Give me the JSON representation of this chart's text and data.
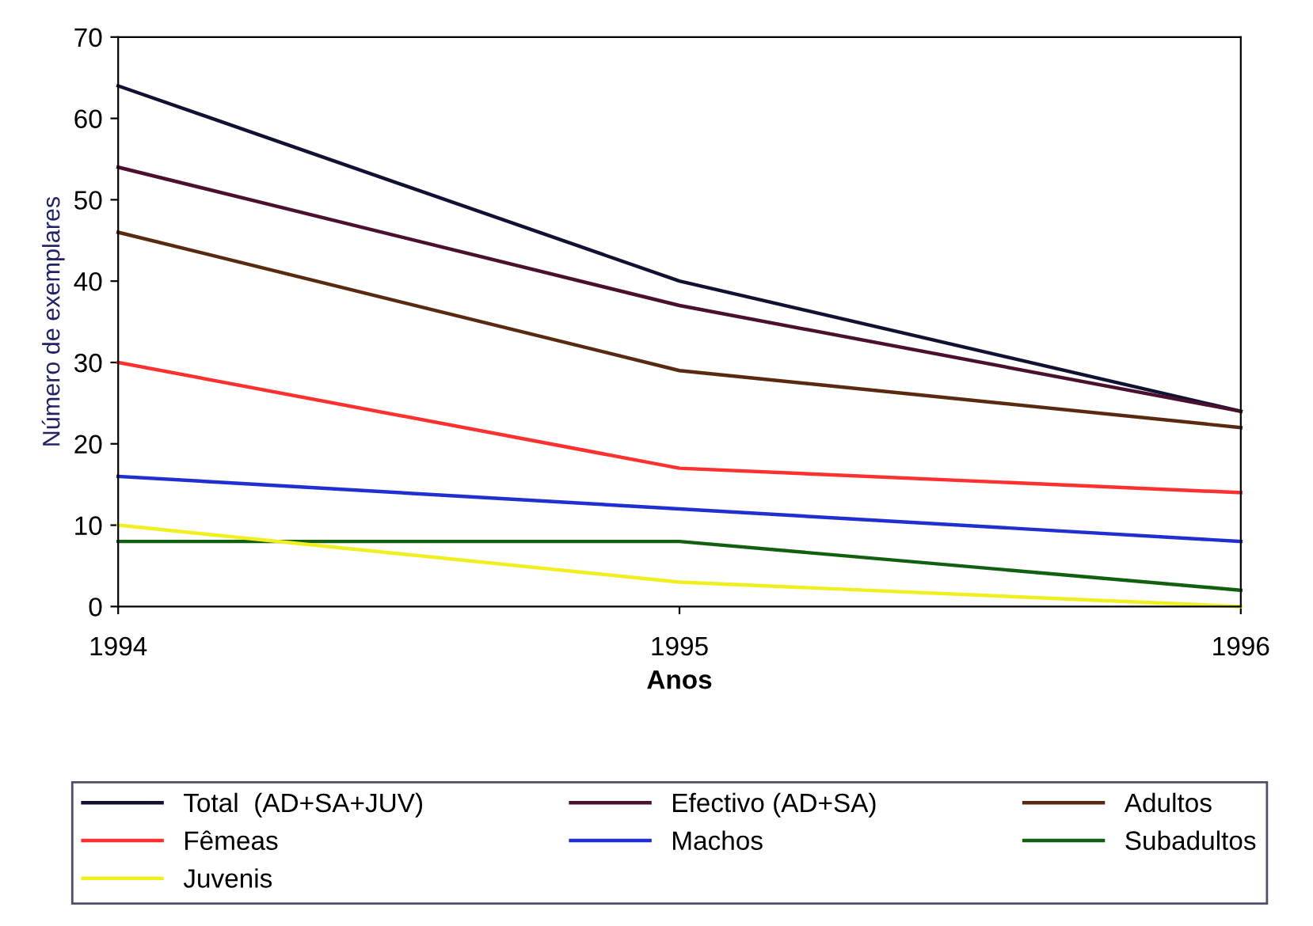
{
  "chart_data": {
    "type": "line",
    "xlabel": "Anos",
    "ylabel": "Número de exemplares",
    "x": [
      1994,
      1995,
      1996
    ],
    "xlim": [
      1994,
      1996
    ],
    "xticks": [
      1994,
      1995,
      1996
    ],
    "ylim": [
      0,
      70
    ],
    "yticks": [
      0,
      10,
      20,
      30,
      40,
      50,
      60,
      70
    ],
    "grid": false,
    "legend": "bottom",
    "marker": "none",
    "line_style": "solid",
    "series": [
      {
        "name": "Total  (AD+SA+JUV)",
        "color": "#111133",
        "values": [
          64,
          40,
          24
        ]
      },
      {
        "name": "Efectivo (AD+SA)",
        "color": "#4b1030",
        "values": [
          54,
          37,
          24
        ]
      },
      {
        "name": "Adultos",
        "color": "#5a2a10",
        "values": [
          46,
          29,
          22
        ]
      },
      {
        "name": "Fêmeas",
        "color": "#ff3030",
        "values": [
          30,
          17,
          14
        ]
      },
      {
        "name": "Machos",
        "color": "#2030d0",
        "values": [
          16,
          12,
          8
        ]
      },
      {
        "name": "Subadultos",
        "color": "#106010",
        "values": [
          8,
          8,
          2
        ]
      },
      {
        "name": "Juvenis",
        "color": "#f0f020",
        "values": [
          10,
          3,
          0
        ]
      }
    ]
  }
}
